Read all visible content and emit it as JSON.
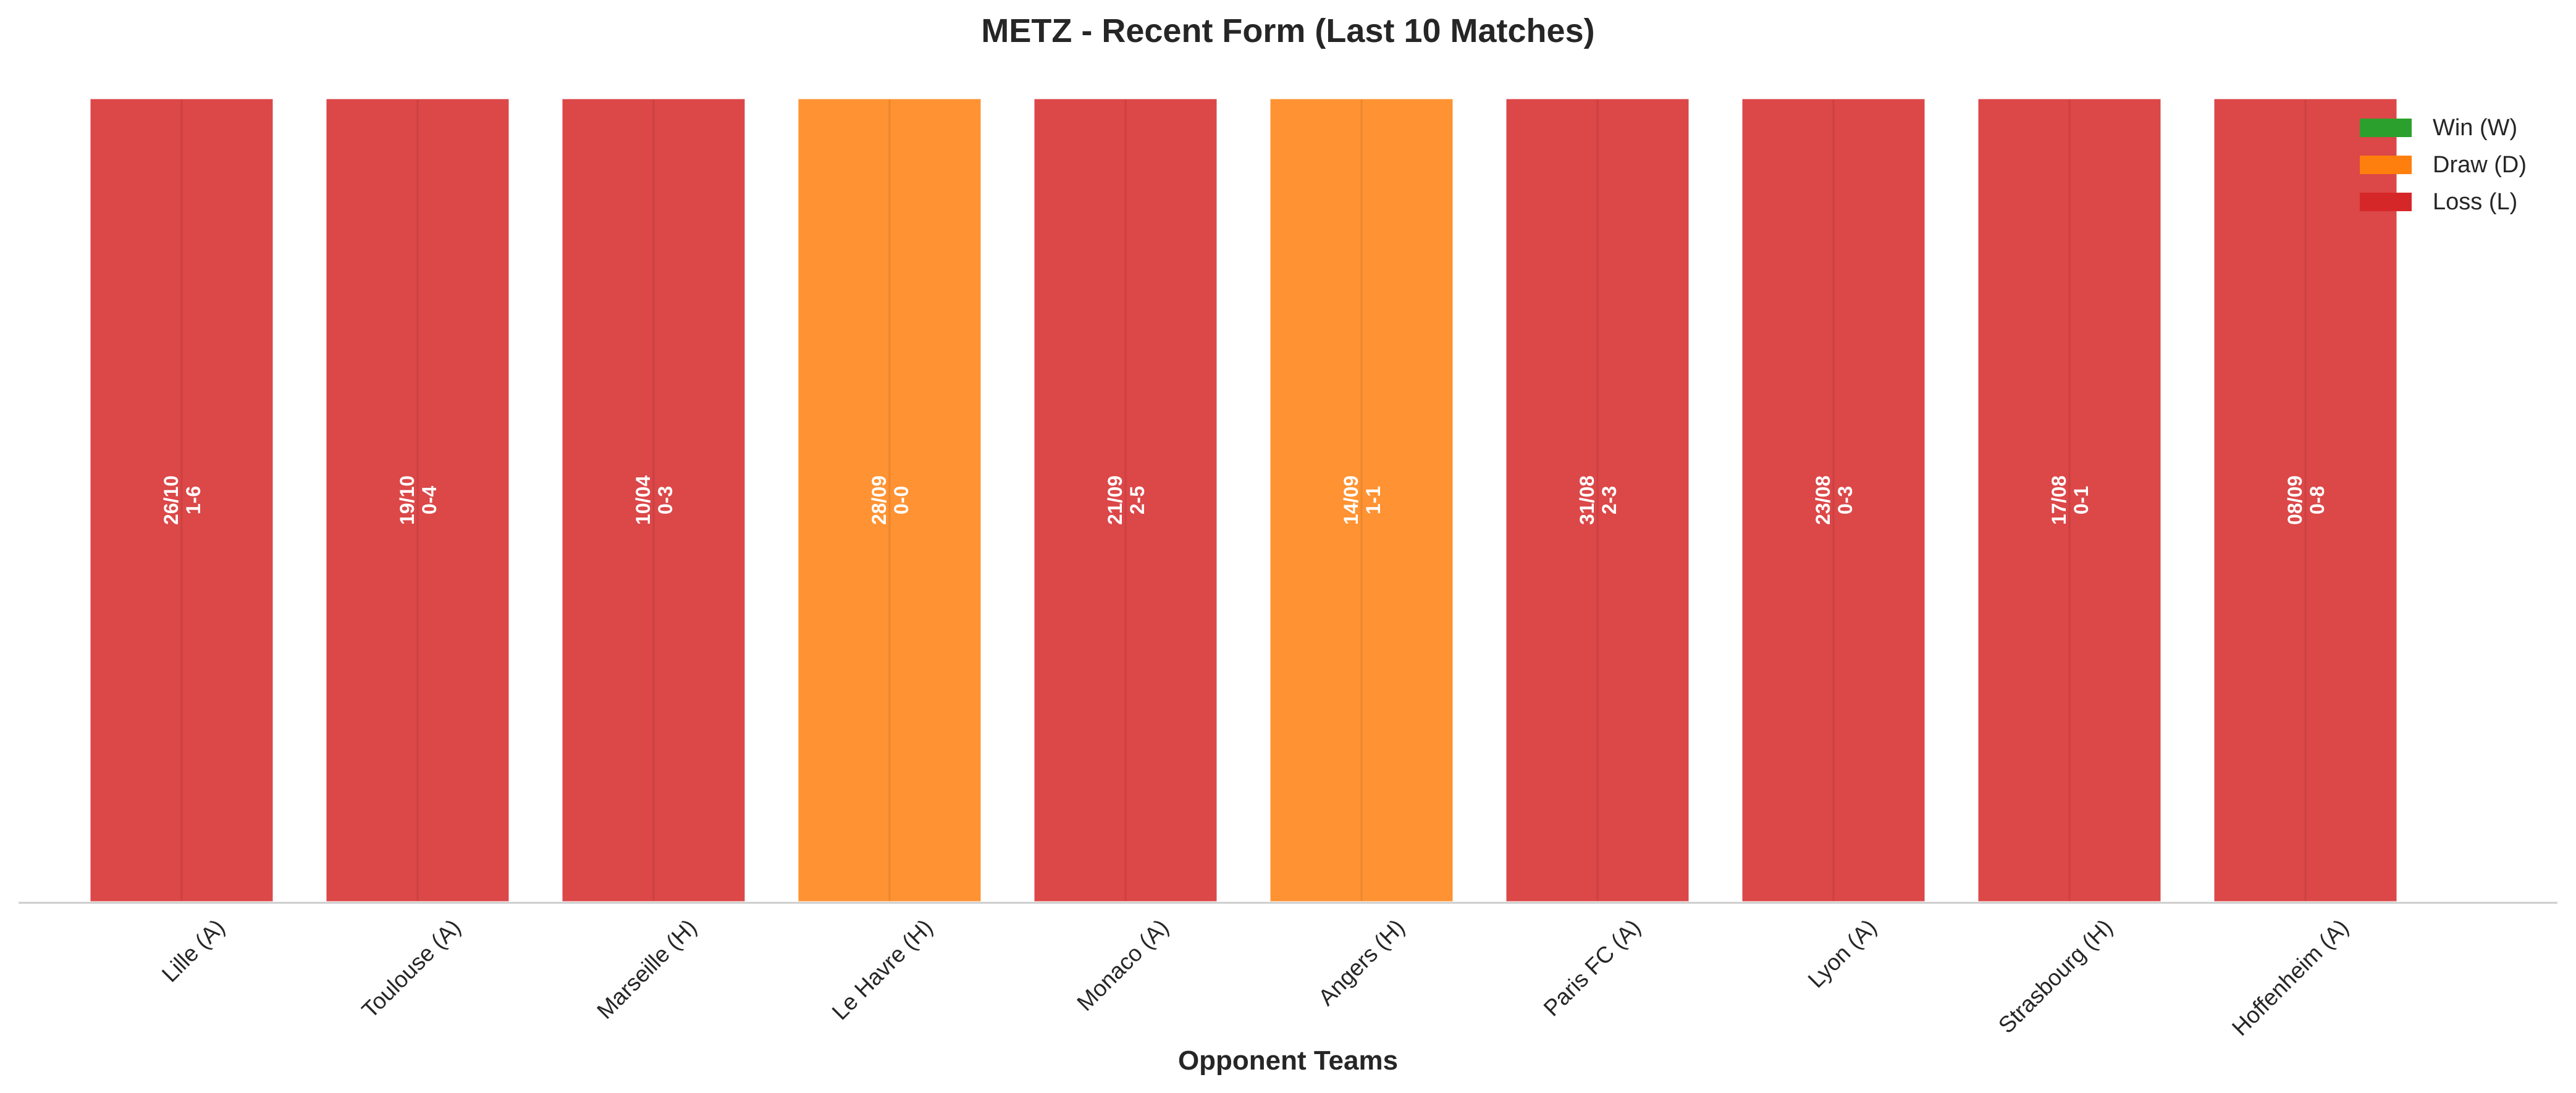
{
  "chart_data": {
    "type": "bar",
    "title": "METZ - Recent Form (Last 10 Matches)",
    "xlabel": "Opponent Teams",
    "ylabel": "",
    "grid": false,
    "legend_position": "top-right",
    "categories": [
      "Lille (A)",
      "Toulouse (A)",
      "Marseille (H)",
      "Le Havre (H)",
      "Monaco (A)",
      "Angers (H)",
      "Paris FC (A)",
      "Lyon (A)",
      "Strasbourg (H)",
      "Hoffenheim (A)"
    ],
    "values": [
      1,
      1,
      1,
      1,
      1,
      1,
      1,
      1,
      1,
      1
    ],
    "results": [
      "L",
      "L",
      "L",
      "D",
      "L",
      "D",
      "L",
      "L",
      "L",
      "L"
    ],
    "dates": [
      "26/10",
      "19/10",
      "10/04",
      "28/09",
      "21/09",
      "14/09",
      "31/08",
      "23/08",
      "17/08",
      "08/09"
    ],
    "scores": [
      "1-6",
      "0-4",
      "0-3",
      "0-0",
      "2-5",
      "1-1",
      "2-3",
      "0-3",
      "0-1",
      "0-8"
    ],
    "legend": [
      {
        "key": "W",
        "label": "Win (W)",
        "color": "#2ca02c"
      },
      {
        "key": "D",
        "label": "Draw (D)",
        "color": "#ff7f0e"
      },
      {
        "key": "L",
        "label": "Loss (L)",
        "color": "#d62728"
      }
    ],
    "ylim": [
      0,
      1
    ]
  }
}
